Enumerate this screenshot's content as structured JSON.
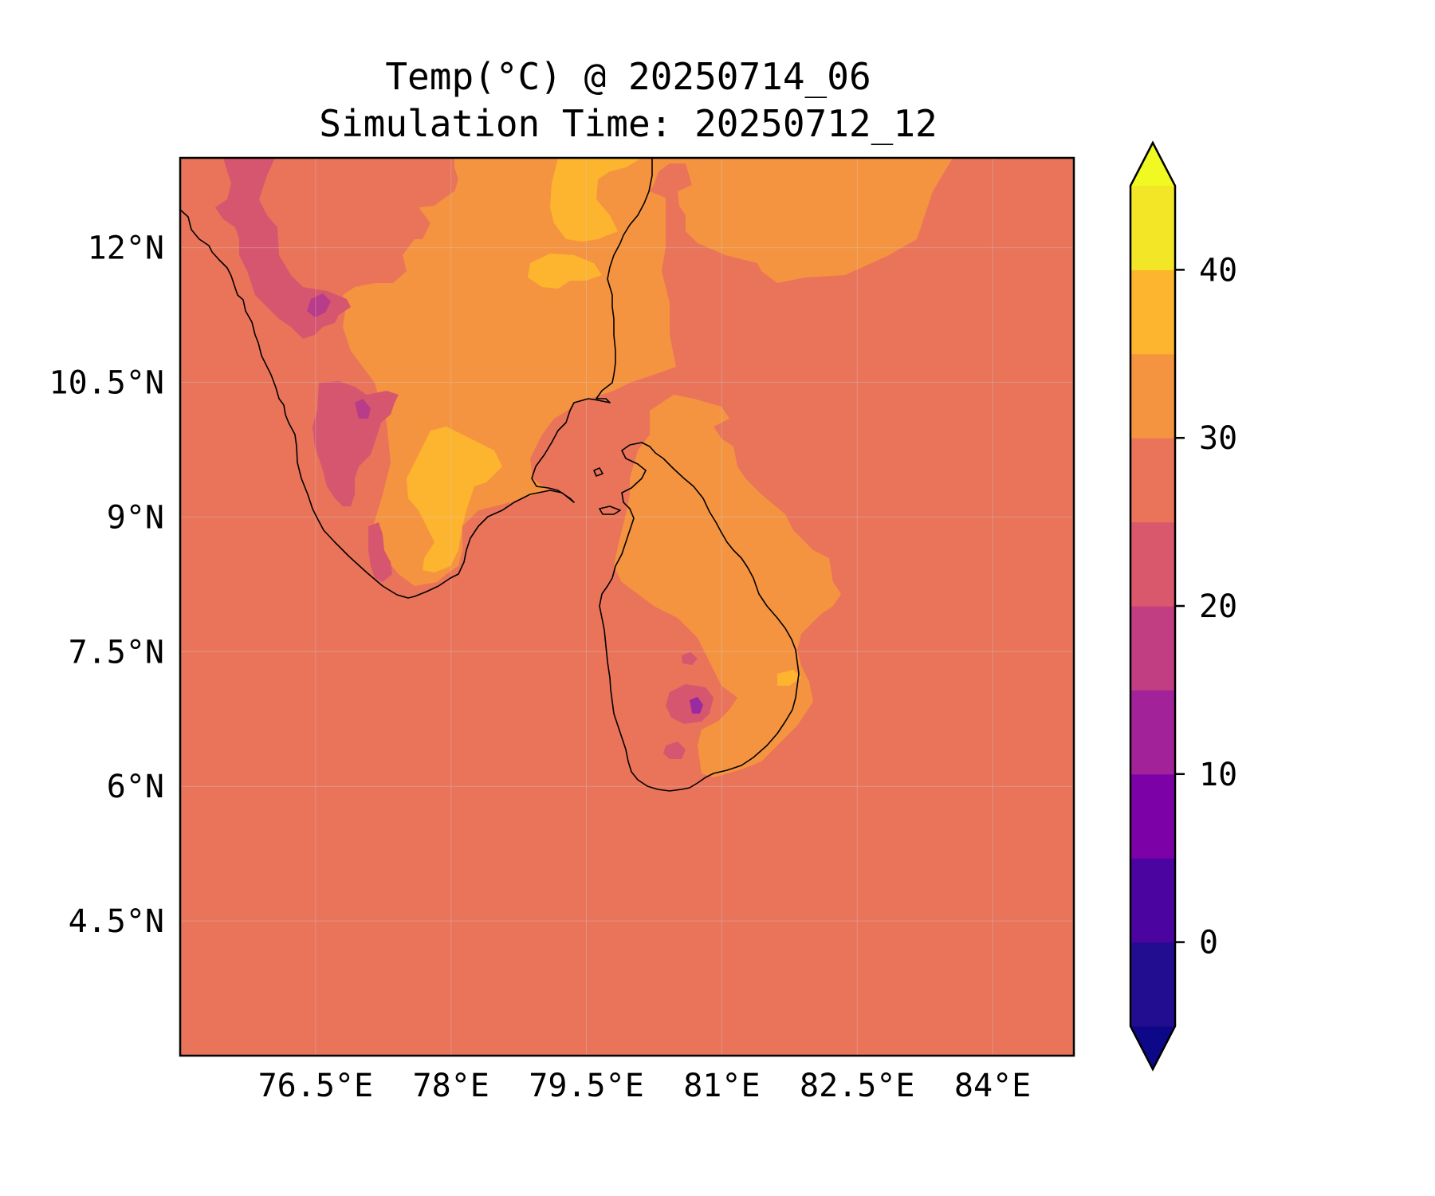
{
  "title": {
    "line1": "Temp(°C) @ 20250714_06",
    "line2": "Simulation Time: 20250712_12"
  },
  "colors": {
    "background_level": "#e9745a",
    "land_warm": "#f59440",
    "land_hot": "#fdb42e",
    "highland_cool": "#d6566f",
    "highland_cold": "#b83c8a",
    "peak_coldest": "#9a2aa0",
    "coastline": "#000000"
  },
  "map": {
    "lon_range": [
      75.0,
      84.9
    ],
    "lat_range": [
      3.0,
      13.0
    ],
    "x_ticks": [
      {
        "value": 76.5,
        "label": "76.5°E"
      },
      {
        "value": 78.0,
        "label": "78°E"
      },
      {
        "value": 79.5,
        "label": "79.5°E"
      },
      {
        "value": 81.0,
        "label": "81°E"
      },
      {
        "value": 82.5,
        "label": "82.5°E"
      },
      {
        "value": 84.0,
        "label": "84°E"
      }
    ],
    "y_ticks": [
      {
        "value": 12.0,
        "label": "12°N"
      },
      {
        "value": 10.5,
        "label": "10.5°N"
      },
      {
        "value": 9.0,
        "label": "9°N"
      },
      {
        "value": 7.5,
        "label": "7.5°N"
      },
      {
        "value": 6.0,
        "label": "6°N"
      },
      {
        "value": 4.5,
        "label": "4.5°N"
      }
    ]
  },
  "colorbar": {
    "range": [
      -5,
      45
    ],
    "extend": "both",
    "levels": [
      -5,
      0,
      5,
      10,
      15,
      20,
      25,
      30,
      35,
      40,
      45
    ],
    "segment_colors": [
      "#220c8f",
      "#4c04a0",
      "#7c02a8",
      "#a22299",
      "#c13e83",
      "#da586b",
      "#e9745a",
      "#f59440",
      "#fdb42e",
      "#f2e626"
    ],
    "under_color": "#0d0887",
    "over_color": "#f0f921",
    "ticks": [
      {
        "value": 0,
        "label": "0"
      },
      {
        "value": 10,
        "label": "10"
      },
      {
        "value": 20,
        "label": "20"
      },
      {
        "value": 30,
        "label": "30"
      },
      {
        "value": 40,
        "label": "40"
      }
    ]
  }
}
